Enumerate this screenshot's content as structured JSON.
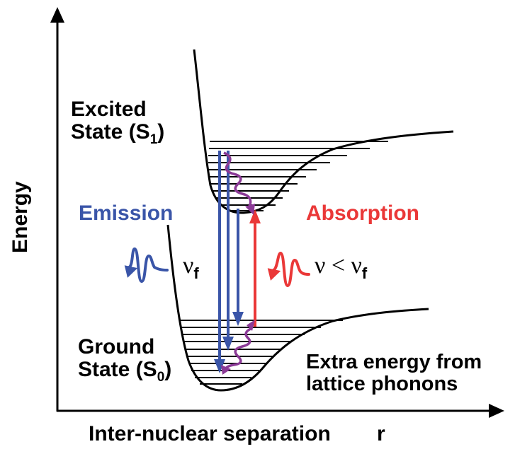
{
  "labels": {
    "excited_line1": "Excited",
    "excited_line2_main": "State (S",
    "excited_sub": "1",
    "excited_close": ")",
    "ground_line1": "Ground",
    "ground_line2_main": "State (S",
    "ground_sub": "0",
    "ground_close": ")",
    "extra_line1": "Extra energy from",
    "extra_line2": "lattice phonons",
    "emission": "Emission",
    "absorption": "Absorption",
    "y_axis": "Energy",
    "x_axis": "Inter-nuclear separation",
    "x_axis_symbol": "r",
    "nu_f_main": "ν",
    "nu_f_sub": "f",
    "nu_lt_main": "ν < ν",
    "nu_lt_sub": "f"
  },
  "colors": {
    "emission": "#3a55a8",
    "absorption": "#ea3838",
    "relaxation": "#8b3a96",
    "curves": "#000000"
  }
}
